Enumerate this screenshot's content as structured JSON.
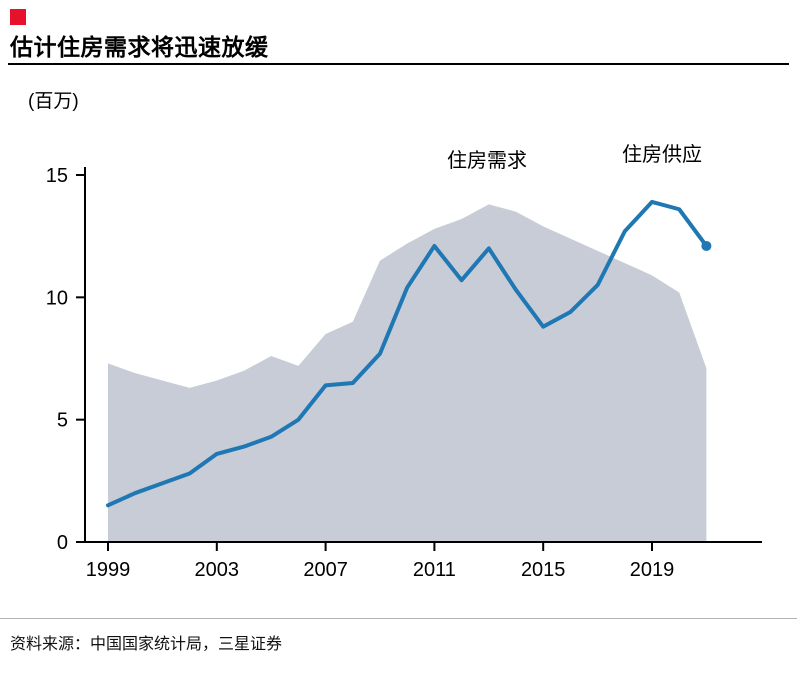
{
  "header": {
    "title": "估计住房需求将迅速放缓"
  },
  "source": "资料来源：中国国家统计局，三星证券",
  "colors": {
    "accent_red": "#e8112d",
    "supply_line": "#1f77b4",
    "demand_area": "#c7ccd6",
    "axis": "#000000"
  },
  "chart_data": {
    "type": "area",
    "title": "估计住房需求将迅速放缓",
    "xlabel": "",
    "ylabel": "(百万)",
    "xlim": [
      1999,
      2021
    ],
    "ylim": [
      0,
      15
    ],
    "xticks": [
      1999,
      2003,
      2007,
      2011,
      2015,
      2019
    ],
    "yticks": [
      0,
      5,
      10,
      15
    ],
    "grid": false,
    "legend_position": "inline-annotations",
    "x": [
      1999,
      2000,
      2001,
      2002,
      2003,
      2004,
      2005,
      2006,
      2007,
      2008,
      2009,
      2010,
      2011,
      2012,
      2013,
      2014,
      2015,
      2016,
      2017,
      2018,
      2019,
      2020,
      2021
    ],
    "series": [
      {
        "name": "住房需求",
        "style": "area",
        "color": "#c7ccd6",
        "values": [
          7.3,
          6.9,
          6.6,
          6.3,
          6.6,
          7.0,
          7.6,
          7.2,
          8.5,
          9.0,
          11.5,
          12.2,
          12.8,
          13.2,
          13.8,
          13.5,
          12.9,
          12.4,
          11.9,
          11.4,
          10.9,
          10.2,
          7.1
        ]
      },
      {
        "name": "住房供应",
        "style": "line",
        "color": "#1f77b4",
        "values": [
          1.5,
          2.0,
          2.4,
          2.8,
          3.6,
          3.9,
          4.3,
          5.0,
          6.4,
          6.5,
          7.7,
          10.4,
          12.1,
          10.7,
          12.0,
          10.3,
          8.8,
          9.4,
          10.5,
          12.7,
          13.9,
          13.6,
          12.1
        ]
      }
    ]
  }
}
